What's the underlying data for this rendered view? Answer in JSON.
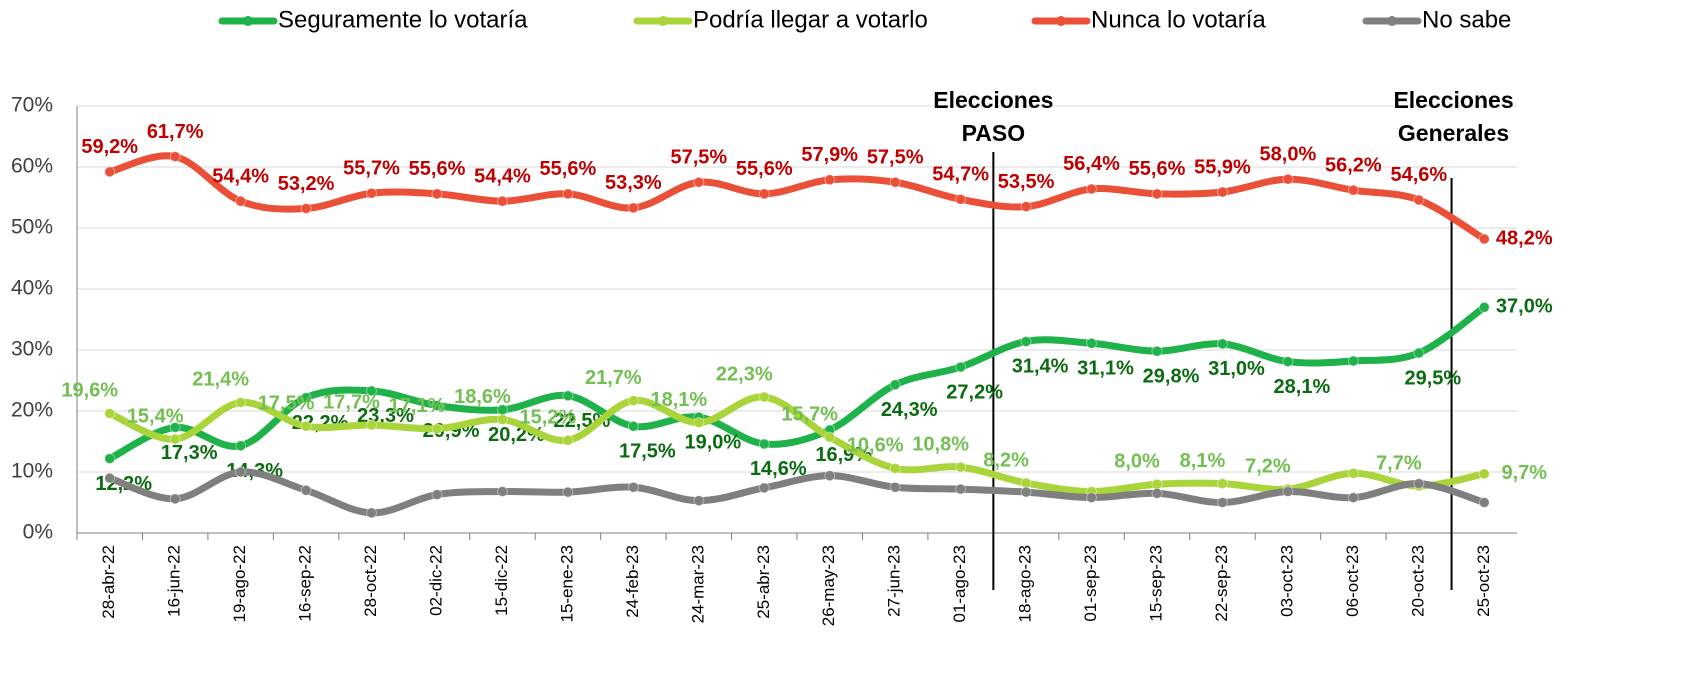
{
  "chart_data": {
    "type": "line",
    "categories": [
      "28-abr-22",
      "16-jun-22",
      "19-ago-22",
      "16-sep-22",
      "28-oct-22",
      "02-dic-22",
      "15-dic-22",
      "15-ene-23",
      "24-feb-23",
      "24-mar-23",
      "25-abr-23",
      "26-may-23",
      "27-jun-23",
      "01-ago-23",
      "18-ago-23",
      "01-sep-23",
      "15-sep-23",
      "22-sep-23",
      "03-oct-23",
      "06-oct-23",
      "20-oct-23",
      "25-oct-23"
    ],
    "series": [
      {
        "name": "Seguramente lo votaría",
        "color": "#1fb24a",
        "label_color": "#0b6b10",
        "values": [
          12.2,
          17.3,
          14.3,
          22.2,
          23.3,
          20.9,
          20.2,
          22.5,
          17.5,
          19.0,
          14.6,
          16.9,
          24.3,
          27.2,
          31.4,
          31.1,
          29.8,
          31.0,
          28.1,
          28.2,
          29.5,
          37.0
        ],
        "value_labels": [
          "12,2%",
          "17,3%",
          "14,3%",
          "22,2%",
          "23,3%",
          "20,9%",
          "20,2%",
          "22,5%",
          "17,5%",
          "19,0%",
          "14,6%",
          "16,9%",
          "24,3%",
          "27,2%",
          "31,4%",
          "31,1%",
          "29,8%",
          "31,0%",
          "28,1%",
          null,
          "29,5%",
          "37,0%"
        ]
      },
      {
        "name": "Podría llegar a votarlo",
        "color": "#a9d43a",
        "label_color": "#72bf52",
        "values": [
          19.6,
          15.4,
          21.4,
          17.5,
          17.7,
          17.1,
          18.6,
          15.2,
          21.7,
          18.1,
          22.3,
          15.7,
          10.6,
          10.8,
          8.2,
          6.8,
          8.0,
          8.1,
          7.2,
          9.8,
          7.7,
          9.7
        ],
        "value_labels": [
          "19,6%",
          "15,4%",
          "21,4%",
          "17,5%",
          "17,7%",
          "17,1%",
          "18,6%",
          "15,2%",
          "21,7%",
          "18,1%",
          "22,3%",
          "15,7%",
          "10,6%",
          "10,8%",
          "8,2%",
          null,
          "8,0%",
          "8,1%",
          "7,2%",
          null,
          "7,7%",
          "9,7%"
        ]
      },
      {
        "name": "Nunca lo votaría",
        "color": "#ea5038",
        "label_color": "#c00000",
        "values": [
          59.2,
          61.7,
          54.4,
          53.2,
          55.7,
          55.6,
          54.4,
          55.6,
          53.3,
          57.5,
          55.6,
          57.9,
          57.5,
          54.7,
          53.5,
          56.4,
          55.6,
          55.9,
          58.0,
          56.2,
          54.6,
          48.2
        ],
        "value_labels": [
          "59,2%",
          "61,7%",
          "54,4%",
          "53,2%",
          "55,7%",
          "55,6%",
          "54,4%",
          "55,6%",
          "53,3%",
          "57,5%",
          "55,6%",
          "57,9%",
          "57,5%",
          "54,7%",
          "53,5%",
          "56,4%",
          "55,6%",
          "55,9%",
          "58,0%",
          "56,2%",
          "54,6%",
          "48,2%"
        ]
      },
      {
        "name": "No sabe",
        "color": "#7f7f7f",
        "values": [
          9.0,
          5.6,
          10.0,
          7.0,
          3.3,
          6.3,
          6.8,
          6.7,
          7.5,
          5.3,
          7.4,
          9.4,
          7.5,
          7.2,
          6.7,
          5.8,
          6.5,
          5.0,
          6.8,
          5.8,
          8.1,
          5.0
        ]
      }
    ],
    "ylim": [
      0,
      70
    ],
    "yticks": [
      {
        "value": 0,
        "label": "0%"
      },
      {
        "value": 10,
        "label": "10%"
      },
      {
        "value": 20,
        "label": "20%"
      },
      {
        "value": 30,
        "label": "30%"
      },
      {
        "value": 40,
        "label": "40%"
      },
      {
        "value": 50,
        "label": "50%"
      },
      {
        "value": 60,
        "label": "60%"
      },
      {
        "value": 70,
        "label": "70%"
      }
    ],
    "grid": true,
    "legend": "top",
    "annotations": [
      {
        "lines": [
          "Elecciones",
          "PASO"
        ],
        "after": 13.5
      },
      {
        "lines": [
          "Elecciones",
          "Generales"
        ],
        "after": 20.5
      }
    ]
  }
}
